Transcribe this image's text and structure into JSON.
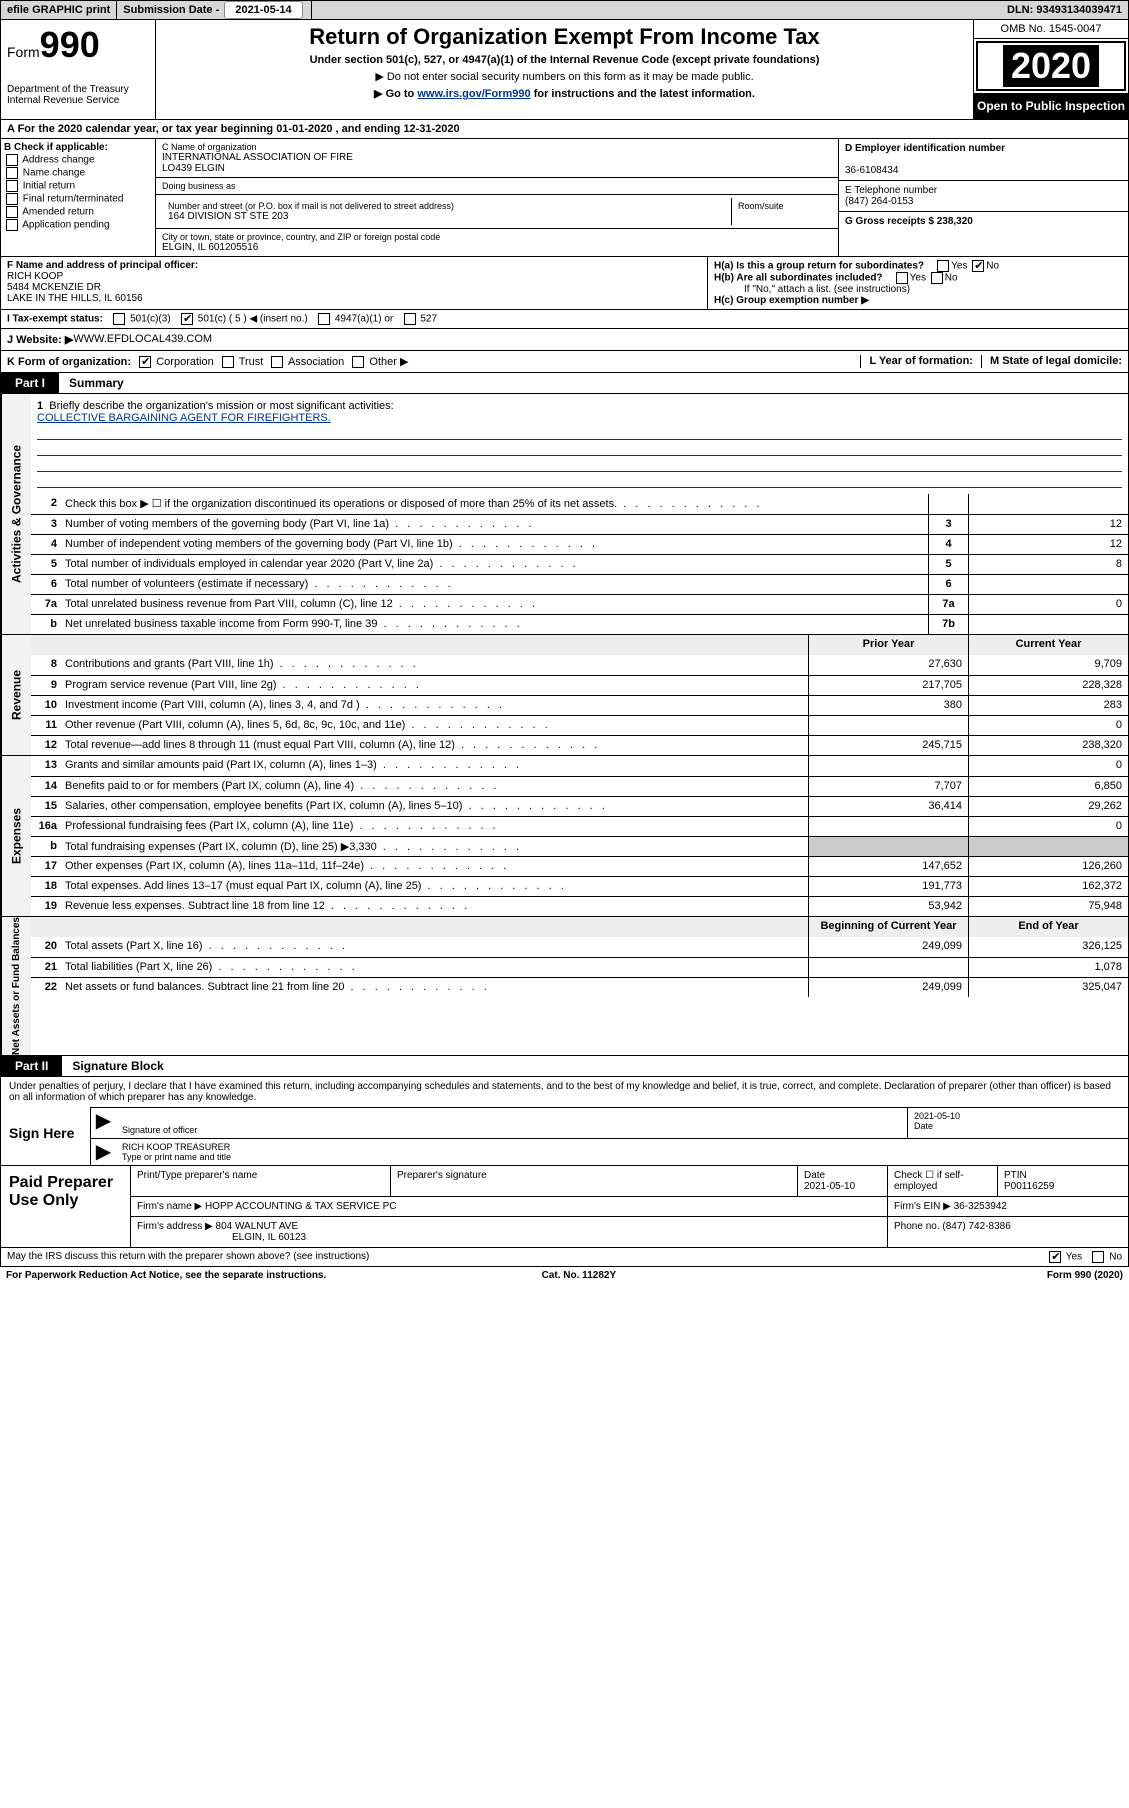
{
  "topbar": {
    "efile": "efile GRAPHIC print",
    "submission_label": "Submission Date - ",
    "submission_date": "2021-05-14",
    "dln_label": "DLN: ",
    "dln": "93493134039471"
  },
  "header": {
    "form_prefix": "Form",
    "form_number": "990",
    "dept": "Department of the Treasury\nInternal Revenue Service",
    "title": "Return of Organization Exempt From Income Tax",
    "subtitle": "Under section 501(c), 527, or 4947(a)(1) of the Internal Revenue Code (except private foundations)",
    "note1": "▶ Do not enter social security numbers on this form as it may be made public.",
    "note2_pre": "▶ Go to ",
    "note2_link": "www.irs.gov/Form990",
    "note2_post": " for instructions and the latest information.",
    "omb": "OMB No. 1545-0047",
    "year": "2020",
    "open": "Open to Public Inspection"
  },
  "row_a": "A For the 2020 calendar year, or tax year beginning 01-01-2020    , and ending 12-31-2020",
  "section_b": {
    "heading": "B Check if applicable:",
    "items": [
      "Address change",
      "Name change",
      "Initial return",
      "Final return/terminated",
      "Amended return",
      "Application pending"
    ]
  },
  "section_c": {
    "name_label": "C Name of organization",
    "name": "INTERNATIONAL ASSOCIATION OF FIRE\nLO439 ELGIN",
    "dba_label": "Doing business as",
    "addr_label": "Number and street (or P.O. box if mail is not delivered to street address)",
    "room_label": "Room/suite",
    "addr": "164 DIVISION ST STE 203",
    "city_label": "City or town, state or province, country, and ZIP or foreign postal code",
    "city": "ELGIN, IL  601205516"
  },
  "section_d": {
    "ein_label": "D Employer identification number",
    "ein": "36-6108434",
    "phone_label": "E Telephone number",
    "phone": "(847) 264-0153",
    "gross_label": "G Gross receipts $ ",
    "gross": "238,320"
  },
  "section_f": {
    "label": "F  Name and address of principal officer:",
    "name": "RICH KOOP",
    "addr1": "5484 MCKENZIE DR",
    "addr2": "LAKE IN THE HILLS, IL  60156"
  },
  "section_h": {
    "ha": "H(a)  Is this a group return for subordinates?",
    "hb": "H(b)  Are all subordinates included?",
    "hb_note": "If \"No,\" attach a list. (see instructions)",
    "hc": "H(c)  Group exemption number ▶"
  },
  "tax_exempt": {
    "label": "I  Tax-exempt status:",
    "opts": [
      "501(c)(3)",
      "501(c) ( 5 ) ◀ (insert no.)",
      "4947(a)(1) or",
      "527"
    ]
  },
  "website": {
    "label": "J  Website: ▶",
    "value": "  WWW.EFDLOCAL439.COM"
  },
  "k_row": {
    "label": "K Form of organization:",
    "opts": [
      "Corporation",
      "Trust",
      "Association",
      "Other ▶"
    ],
    "l": "L Year of formation:",
    "m": "M State of legal domicile:"
  },
  "part1": {
    "tag": "Part I",
    "title": "Summary"
  },
  "briefly": {
    "num": "1",
    "text": "Briefly describe the organization's mission or most significant activities:",
    "mission": "COLLECTIVE BARGAINING AGENT FOR FIREFIGHTERS."
  },
  "gov_lines": [
    {
      "n": "2",
      "d": "Check this box ▶ ☐  if the organization discontinued its operations or disposed of more than 25% of its net assets.",
      "sn": "",
      "sv": ""
    },
    {
      "n": "3",
      "d": "Number of voting members of the governing body (Part VI, line 1a)",
      "sn": "3",
      "sv": "12"
    },
    {
      "n": "4",
      "d": "Number of independent voting members of the governing body (Part VI, line 1b)",
      "sn": "4",
      "sv": "12"
    },
    {
      "n": "5",
      "d": "Total number of individuals employed in calendar year 2020 (Part V, line 2a)",
      "sn": "5",
      "sv": "8"
    },
    {
      "n": "6",
      "d": "Total number of volunteers (estimate if necessary)",
      "sn": "6",
      "sv": ""
    },
    {
      "n": "7a",
      "d": "Total unrelated business revenue from Part VIII, column (C), line 12",
      "sn": "7a",
      "sv": "0"
    },
    {
      "n": "b",
      "d": "Net unrelated business taxable income from Form 990-T, line 39",
      "sn": "7b",
      "sv": ""
    }
  ],
  "rev_hdr": {
    "a": "Prior Year",
    "b": "Current Year"
  },
  "rev_lines": [
    {
      "n": "8",
      "d": "Contributions and grants (Part VIII, line 1h)",
      "a": "27,630",
      "b": "9,709"
    },
    {
      "n": "9",
      "d": "Program service revenue (Part VIII, line 2g)",
      "a": "217,705",
      "b": "228,328"
    },
    {
      "n": "10",
      "d": "Investment income (Part VIII, column (A), lines 3, 4, and 7d )",
      "a": "380",
      "b": "283"
    },
    {
      "n": "11",
      "d": "Other revenue (Part VIII, column (A), lines 5, 6d, 8c, 9c, 10c, and 11e)",
      "a": "",
      "b": "0"
    },
    {
      "n": "12",
      "d": "Total revenue—add lines 8 through 11 (must equal Part VIII, column (A), line 12)",
      "a": "245,715",
      "b": "238,320"
    }
  ],
  "exp_lines": [
    {
      "n": "13",
      "d": "Grants and similar amounts paid (Part IX, column (A), lines 1–3)",
      "a": "",
      "b": "0"
    },
    {
      "n": "14",
      "d": "Benefits paid to or for members (Part IX, column (A), line 4)",
      "a": "7,707",
      "b": "6,850"
    },
    {
      "n": "15",
      "d": "Salaries, other compensation, employee benefits (Part IX, column (A), lines 5–10)",
      "a": "36,414",
      "b": "29,262"
    },
    {
      "n": "16a",
      "d": "Professional fundraising fees (Part IX, column (A), line 11e)",
      "a": "",
      "b": "0"
    },
    {
      "n": "b",
      "d": "Total fundraising expenses (Part IX, column (D), line 25) ▶3,330",
      "a": "—",
      "b": "—"
    },
    {
      "n": "17",
      "d": "Other expenses (Part IX, column (A), lines 11a–11d, 11f–24e)",
      "a": "147,652",
      "b": "126,260"
    },
    {
      "n": "18",
      "d": "Total expenses. Add lines 13–17 (must equal Part IX, column (A), line 25)",
      "a": "191,773",
      "b": "162,372"
    },
    {
      "n": "19",
      "d": "Revenue less expenses. Subtract line 18 from line 12",
      "a": "53,942",
      "b": "75,948"
    }
  ],
  "net_hdr": {
    "a": "Beginning of Current Year",
    "b": "End of Year"
  },
  "net_lines": [
    {
      "n": "20",
      "d": "Total assets (Part X, line 16)",
      "a": "249,099",
      "b": "326,125"
    },
    {
      "n": "21",
      "d": "Total liabilities (Part X, line 26)",
      "a": "",
      "b": "1,078"
    },
    {
      "n": "22",
      "d": "Net assets or fund balances. Subtract line 21 from line 20",
      "a": "249,099",
      "b": "325,047"
    }
  ],
  "part2": {
    "tag": "Part II",
    "title": "Signature Block"
  },
  "perjury": "Under penalties of perjury, I declare that I have examined this return, including accompanying schedules and statements, and to the best of my knowledge and belief, it is true, correct, and complete. Declaration of preparer (other than officer) is based on all information of which preparer has any knowledge.",
  "sign": {
    "here": "Sign Here",
    "sig_officer": "Signature of officer",
    "date_label": "Date",
    "date": "2021-05-10",
    "name": "RICH KOOP  TREASURER",
    "name_label": "Type or print name and title"
  },
  "paid": {
    "label": "Paid Preparer Use Only",
    "h1": "Print/Type preparer's name",
    "h2": "Preparer's signature",
    "h3": "Date",
    "date": "2021-05-10",
    "h4": "Check ☐ if self-employed",
    "h5": "PTIN",
    "ptin": "P00116259",
    "firm_label": "Firm's name    ▶ ",
    "firm": "HOPP ACCOUNTING & TAX SERVICE PC",
    "ein_label": "Firm's EIN ▶ ",
    "ein": "36-3253942",
    "addr_label": "Firm's address ▶ ",
    "addr1": "804 WALNUT AVE",
    "addr2": "ELGIN, IL  60123",
    "phone_label": "Phone no. ",
    "phone": "(847) 742-8386"
  },
  "footer": {
    "may": "May the IRS discuss this return with the preparer shown above? (see instructions)",
    "paperwork": "For Paperwork Reduction Act Notice, see the separate instructions.",
    "cat": "Cat. No. 11282Y",
    "form": "Form 990 (2020)"
  },
  "vlabels": {
    "gov": "Activities & Governance",
    "rev": "Revenue",
    "exp": "Expenses",
    "net": "Net Assets or Fund Balances"
  }
}
